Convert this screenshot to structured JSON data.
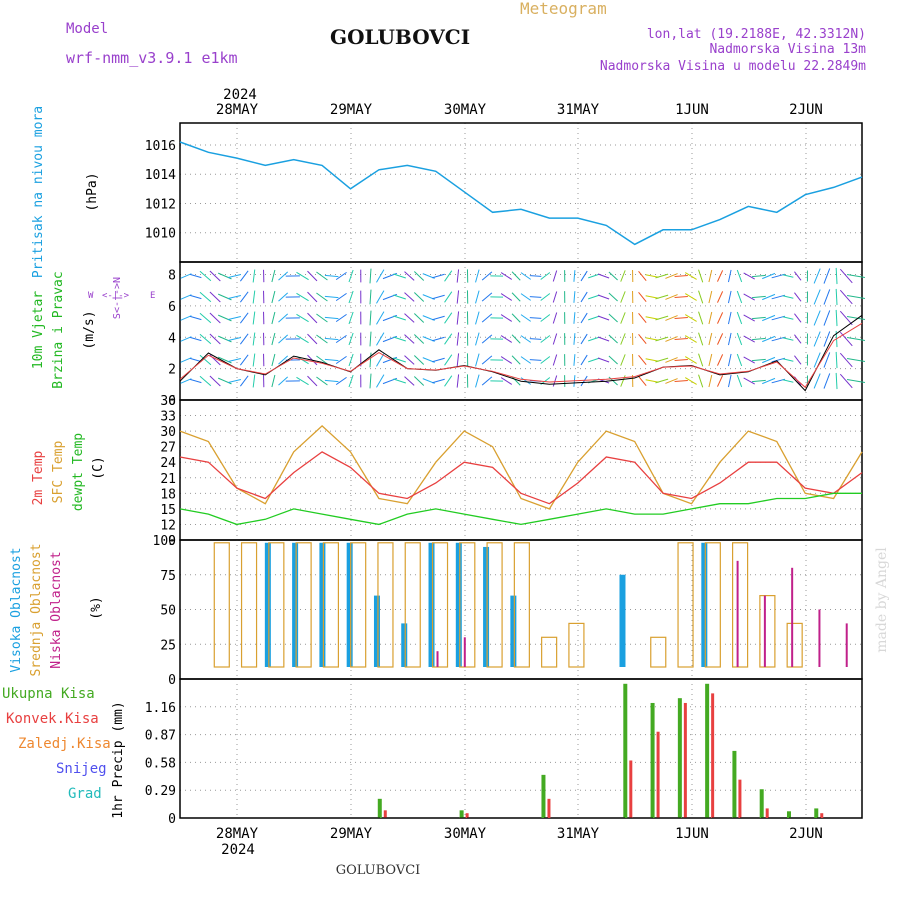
{
  "header": {
    "model_label": "Model",
    "model_name": "wrf-nmm_v3.9.1 e1km",
    "title": "GOLUBOVCI",
    "product": "Meteogram",
    "lonlat": "lon,lat (19.2188E, 42.3312N)",
    "altitude": "Nadmorska Visina 13m",
    "model_altitude": "Nadmorska Visina u modelu 22.2849m",
    "footer_station": "GOLUBOVCI",
    "watermark": "made by Angel"
  },
  "time_axis": {
    "year": "2024",
    "days": [
      "28MAY",
      "29MAY",
      "30MAY",
      "31MAY",
      "1JUN",
      "2JUN"
    ]
  },
  "colors": {
    "pressure": "#1aa0e0",
    "wind_label": "#22b822",
    "temp2m": "#e84040",
    "sfc_temp": "#d9a030",
    "dewpoint": "#22cc22",
    "cloud_high": "#1aa0e0",
    "cloud_mid": "#d9a030",
    "cloud_low": "#c0208a",
    "precip_total": "#44aa22",
    "precip_conv": "#e84040",
    "precip_ice": "#ee8830",
    "snow": "#5050ee",
    "grad": "#22bbbb",
    "wind_dir_label": "#9940cc"
  },
  "chart_data": [
    {
      "type": "line",
      "title": "",
      "ylabel": "Pritisak na nivou mora",
      "unit": "(hPa)",
      "ylim": [
        1008,
        1017.5
      ],
      "yticks": [
        "1010",
        "1012",
        "1014",
        "1016"
      ],
      "x_hours": [
        0,
        6,
        12,
        18,
        24,
        30,
        36,
        42,
        48,
        54,
        60,
        66,
        72,
        78,
        84,
        90,
        96,
        102,
        108,
        114,
        120,
        126,
        132,
        138,
        144
      ],
      "series": [
        {
          "values": [
            1016.2,
            1015.5,
            1015.1,
            1014.6,
            1015.0,
            1014.6,
            1013.0,
            1014.3,
            1014.6,
            1014.2,
            1012.8,
            1011.4,
            1011.6,
            1011.0,
            1011.0,
            1010.5,
            1009.2,
            1010.2,
            1010.2,
            1010.9,
            1011.8,
            1011.4,
            1012.6,
            1013.1,
            1013.8
          ]
        }
      ]
    },
    {
      "type": "line",
      "title": "",
      "ylabel": "10m Vjetar Brzina i Pravac",
      "unit": "(m/s)",
      "ylim": [
        0,
        8.8
      ],
      "yticks": [
        "0",
        "2",
        "4",
        "6",
        "8"
      ],
      "direction_legend": [
        "N",
        "W",
        "E",
        "S"
      ],
      "series": [
        {
          "values": [
            1.2,
            3.0,
            2.0,
            1.6,
            2.8,
            2.4,
            1.8,
            3.2,
            2.0,
            1.9,
            2.2,
            1.8,
            1.2,
            1.0,
            1.1,
            1.2,
            1.4,
            2.1,
            2.2,
            1.6,
            1.8,
            2.5,
            0.6,
            4.1,
            5.4
          ]
        }
      ]
    },
    {
      "type": "line",
      "title": "",
      "ylabel": "2m Temp SFC Temp dewpt Temp",
      "unit": "(C)",
      "ylim": [
        9,
        36
      ],
      "yticks": [
        "9",
        "12",
        "15",
        "18",
        "21",
        "24",
        "27",
        "30",
        "33",
        "36"
      ],
      "series": [
        {
          "name": "2m Temp",
          "values": [
            25,
            24,
            19,
            17,
            22,
            26,
            23,
            18,
            17,
            20,
            24,
            23,
            18,
            16,
            20,
            25,
            24,
            18,
            17,
            20,
            24,
            24,
            19,
            18,
            22
          ]
        },
        {
          "name": "SFC Temp",
          "values": [
            30,
            28,
            19,
            16,
            26,
            31,
            26,
            17,
            16,
            24,
            30,
            27,
            17,
            15,
            24,
            30,
            28,
            18,
            16,
            24,
            30,
            28,
            18,
            17,
            26
          ]
        },
        {
          "name": "dewpt Temp",
          "values": [
            15,
            14,
            12,
            13,
            15,
            14,
            13,
            12,
            14,
            15,
            14,
            13,
            12,
            13,
            14,
            15,
            14,
            14,
            15,
            16,
            16,
            17,
            17,
            18,
            18
          ]
        }
      ]
    },
    {
      "type": "bar",
      "title": "",
      "ylabel": "Visoka Oblacnost Srednja Oblacnost Niska Oblacnost",
      "unit": "(%)",
      "ylim": [
        0,
        100
      ],
      "yticks": [
        "0",
        "25",
        "50",
        "75",
        "100"
      ],
      "series": [
        {
          "name": "Visoka Oblacnost",
          "values": [
            0,
            0,
            5,
            98,
            98,
            98,
            98,
            60,
            40,
            98,
            98,
            95,
            60,
            0,
            0,
            0,
            75,
            0,
            0,
            98,
            0,
            0,
            0,
            0,
            0
          ]
        },
        {
          "name": "Srednja Oblacnost",
          "values": [
            0,
            98,
            98,
            98,
            98,
            98,
            98,
            98,
            98,
            98,
            98,
            98,
            98,
            30,
            40,
            0,
            0,
            30,
            98,
            98,
            98,
            60,
            40,
            0,
            0
          ]
        },
        {
          "name": "Niska Oblacnost",
          "values": [
            0,
            0,
            0,
            0,
            0,
            0,
            0,
            0,
            0,
            20,
            30,
            0,
            0,
            0,
            0,
            0,
            0,
            0,
            0,
            0,
            85,
            60,
            80,
            50,
            40
          ]
        }
      ]
    },
    {
      "type": "bar",
      "title": "",
      "ylabel": "1hr Precip",
      "unit": "(mm)",
      "ylim": [
        0,
        1.45
      ],
      "yticks": [
        "0",
        "0.29",
        "0.58",
        "0.87",
        "1.16"
      ],
      "series_labels": [
        "Ukupna Kisa",
        "Konvek.Kisa",
        "Zaledj.Kisa",
        "Snijeg",
        "Grad"
      ],
      "series": [
        {
          "name": "Ukupna Kisa",
          "values": [
            0,
            0,
            0,
            0,
            0,
            0,
            0,
            0.2,
            0,
            0,
            0.08,
            0,
            0,
            0.45,
            0,
            0,
            1.4,
            1.2,
            1.25,
            1.4,
            0.7,
            0.3,
            0.07,
            0.1,
            0
          ]
        },
        {
          "name": "Konvek.Kisa",
          "values": [
            0,
            0,
            0,
            0,
            0,
            0,
            0,
            0.08,
            0,
            0,
            0.05,
            0,
            0,
            0.2,
            0,
            0,
            0.6,
            0.9,
            1.2,
            1.3,
            0.4,
            0.1,
            0,
            0.05,
            0
          ]
        }
      ]
    }
  ]
}
